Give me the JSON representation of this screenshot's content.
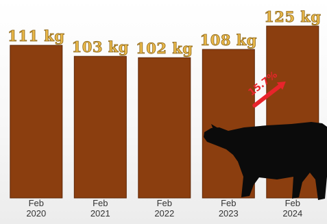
{
  "chart_data": {
    "type": "bar",
    "title": "",
    "xlabel": "",
    "ylabel": "",
    "categories": [
      "Feb\n2020",
      "Feb\n2021",
      "Feb\n2022",
      "Feb\n2023",
      "Feb\n2024"
    ],
    "values": [
      111,
      103,
      102,
      108,
      125
    ],
    "value_labels": [
      "111 kg",
      "103 kg",
      "102 kg",
      "108 kg",
      "125 kg"
    ],
    "unit": "kg",
    "ylim": [
      0,
      125
    ],
    "grid": false,
    "legend": "none",
    "annotation": {
      "text": "15.7%",
      "from_category": "Feb\n2023",
      "to_category": "Feb\n2024",
      "direction": "up"
    },
    "colors": {
      "bar": "#8B3E0F",
      "bar_edge": "#5e2606",
      "value_label": "#E9B84A",
      "value_label_stroke": "#8a6418",
      "tick_label": "#333333",
      "annotation": "#E8242B",
      "silhouette": "#0b0b0b"
    },
    "decoration": "cow-silhouette"
  }
}
